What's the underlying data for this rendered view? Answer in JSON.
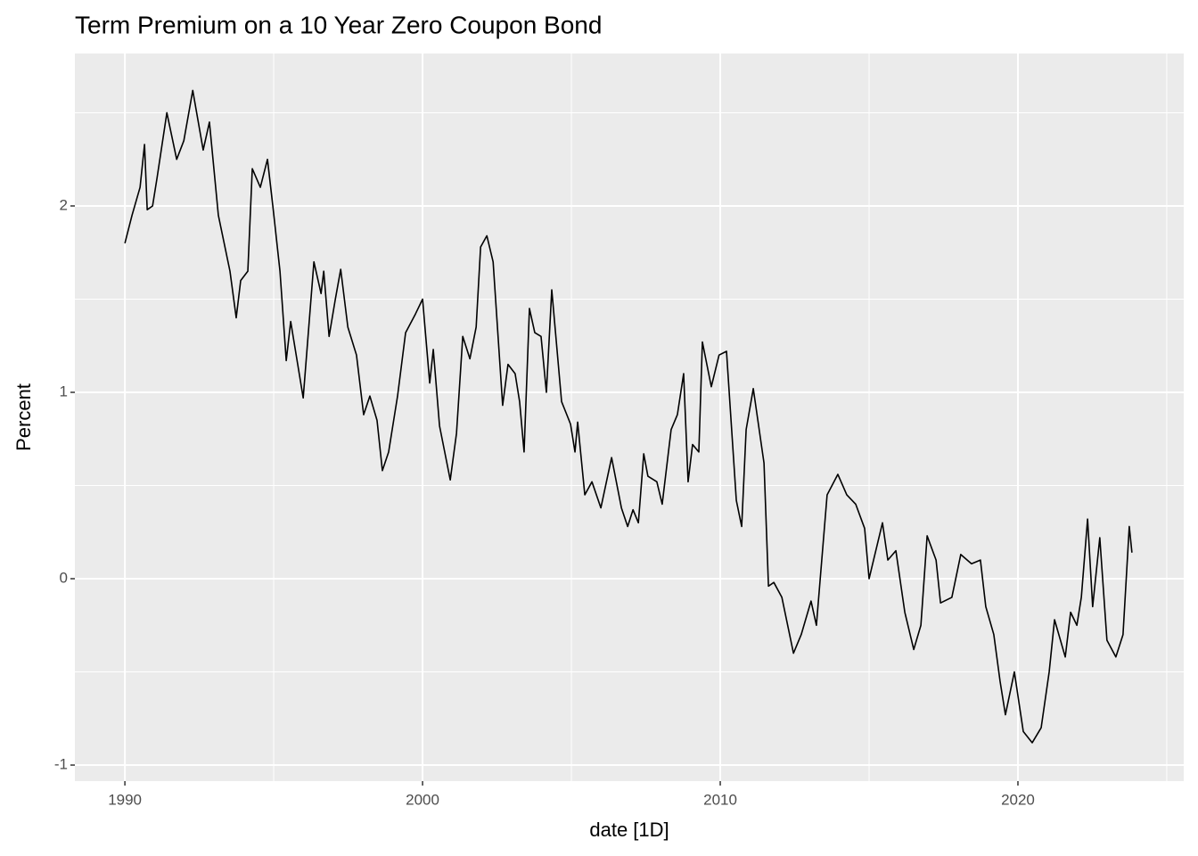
{
  "chart_data": {
    "type": "line",
    "title": "Term Premium on a 10 Year Zero Coupon Bond",
    "x_label": "date [1D]",
    "y_label": "Percent",
    "x": [
      1990.0,
      1990.24,
      1990.51,
      1990.66,
      1990.75,
      1990.93,
      1991.08,
      1991.41,
      1991.74,
      1991.98,
      1992.28,
      1992.63,
      1992.84,
      1993.14,
      1993.53,
      1993.74,
      1993.89,
      1994.13,
      1994.28,
      1994.55,
      1994.79,
      1994.97,
      1995.21,
      1995.42,
      1995.57,
      1995.99,
      1996.35,
      1996.59,
      1996.68,
      1996.86,
      1997.07,
      1997.25,
      1997.49,
      1997.78,
      1998.02,
      1998.23,
      1998.47,
      1998.65,
      1998.86,
      1999.16,
      1999.43,
      1999.76,
      2000.0,
      2000.24,
      2000.36,
      2000.57,
      2000.93,
      2001.14,
      2001.35,
      2001.59,
      2001.8,
      2001.95,
      2002.16,
      2002.37,
      2002.69,
      2002.87,
      2003.11,
      2003.26,
      2003.41,
      2003.59,
      2003.77,
      2003.98,
      2004.16,
      2004.34,
      2004.67,
      2004.97,
      2005.12,
      2005.21,
      2005.45,
      2005.69,
      2005.99,
      2006.35,
      2006.68,
      2006.89,
      2007.07,
      2007.25,
      2007.43,
      2007.57,
      2007.87,
      2008.05,
      2008.35,
      2008.56,
      2008.77,
      2008.92,
      2009.07,
      2009.28,
      2009.4,
      2009.7,
      2009.96,
      2010.21,
      2010.54,
      2010.72,
      2010.87,
      2011.11,
      2011.47,
      2011.62,
      2011.8,
      2012.07,
      2012.46,
      2012.72,
      2013.05,
      2013.23,
      2013.59,
      2013.95,
      2014.25,
      2014.55,
      2014.85,
      2015.0,
      2015.45,
      2015.63,
      2015.9,
      2016.2,
      2016.5,
      2016.74,
      2016.95,
      2017.25,
      2017.4,
      2017.78,
      2018.08,
      2018.44,
      2018.74,
      2018.92,
      2019.19,
      2019.4,
      2019.58,
      2019.88,
      2020.18,
      2020.48,
      2020.78,
      2021.05,
      2021.23,
      2021.59,
      2021.77,
      2021.98,
      2022.13,
      2022.34,
      2022.51,
      2022.75,
      2022.99,
      2023.29,
      2023.53,
      2023.74,
      2023.83
    ],
    "series": [
      {
        "color": "#000000",
        "values": [
          1.8,
          1.95,
          2.1,
          2.33,
          1.98,
          2.0,
          2.15,
          2.5,
          2.25,
          2.35,
          2.62,
          2.3,
          2.45,
          1.95,
          1.65,
          1.4,
          1.6,
          1.65,
          2.2,
          2.1,
          2.25,
          2.0,
          1.65,
          1.17,
          1.38,
          0.97,
          1.7,
          1.53,
          1.65,
          1.3,
          1.5,
          1.66,
          1.35,
          1.2,
          0.88,
          0.98,
          0.85,
          0.58,
          0.68,
          0.98,
          1.32,
          1.42,
          1.5,
          1.05,
          1.23,
          0.82,
          0.53,
          0.78,
          1.3,
          1.18,
          1.35,
          1.78,
          1.84,
          1.7,
          0.93,
          1.15,
          1.1,
          0.95,
          0.68,
          1.45,
          1.32,
          1.3,
          1.0,
          1.55,
          0.95,
          0.83,
          0.68,
          0.84,
          0.45,
          0.52,
          0.38,
          0.65,
          0.38,
          0.28,
          0.37,
          0.3,
          0.67,
          0.55,
          0.52,
          0.4,
          0.8,
          0.88,
          1.1,
          0.52,
          0.72,
          0.68,
          1.27,
          1.03,
          1.2,
          1.22,
          0.42,
          0.28,
          0.8,
          1.02,
          0.62,
          -0.04,
          -0.02,
          -0.1,
          -0.4,
          -0.3,
          -0.12,
          -0.25,
          0.45,
          0.56,
          0.45,
          0.4,
          0.27,
          0.0,
          0.3,
          0.1,
          0.15,
          -0.18,
          -0.38,
          -0.25,
          0.23,
          0.1,
          -0.13,
          -0.1,
          0.13,
          0.08,
          0.1,
          -0.15,
          -0.3,
          -0.55,
          -0.73,
          -0.5,
          -0.82,
          -0.88,
          -0.8,
          -0.5,
          -0.22,
          -0.42,
          -0.18,
          -0.25,
          -0.1,
          0.32,
          -0.15,
          0.22,
          -0.33,
          -0.42,
          -0.3,
          0.28,
          0.14
        ]
      }
    ],
    "xlim": [
      1988.32,
      2025.57
    ],
    "ylim": [
      -1.086,
      2.818
    ],
    "xticks": [
      1990,
      2000,
      2010,
      2020
    ],
    "yticks": [
      -1,
      0,
      1,
      2
    ],
    "x_minor_ticks": [
      1995,
      2005,
      2015,
      2025
    ],
    "y_minor_ticks": [
      -0.5,
      0.5,
      1.5,
      2.5
    ],
    "grid": true
  }
}
